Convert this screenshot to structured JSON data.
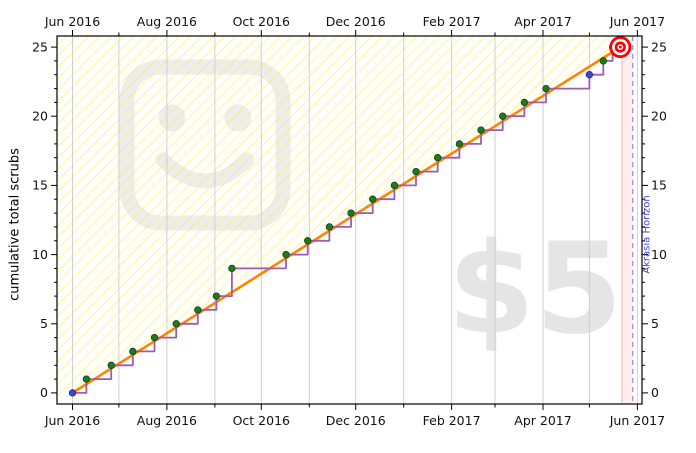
{
  "labels": {
    "y_axis_title": "cumulative total scrubs",
    "akrasia_horizon": "Akrasia Horizon",
    "pledge_watermark": "$5"
  },
  "colors": {
    "road": "#ff8400",
    "steps": "#a05ab0",
    "dot_green": "#1d7a1d",
    "dot_green_edge": "#0a3a0a",
    "dot_blue": "#4444cc",
    "dot_blue_edge": "#202090",
    "hatch": "#ffee00",
    "grid": "#cfcfcf",
    "target": "#ff0000",
    "akrasia_line": "#9a93e0",
    "pink_zone": "#ffdddd",
    "pink_zone_edge": "#ffb3b3",
    "tick": "#000000",
    "label_text": "#111111",
    "frame": "#000000",
    "watermark_gray": "#ededed"
  },
  "chart_data": {
    "type": "line",
    "subtype": "beeminder-goal-graph-step-data",
    "title": "",
    "xlabel": "",
    "ylabel": "cumulative total scrubs",
    "x_unit": "days since 2016-06-01",
    "x_axis": {
      "range_days": [
        -10,
        368
      ],
      "major_ticks": [
        {
          "day": 0,
          "label": "Jun 2016"
        },
        {
          "day": 61,
          "label": "Aug 2016"
        },
        {
          "day": 122,
          "label": "Oct 2016"
        },
        {
          "day": 183,
          "label": "Dec 2016"
        },
        {
          "day": 245,
          "label": "Feb 2017"
        },
        {
          "day": 304,
          "label": "Apr 2017"
        },
        {
          "day": 365,
          "label": "Jun 2017"
        }
      ],
      "minor_tick_days": [
        30,
        92,
        153,
        214,
        273,
        334
      ],
      "month_grid_days": [
        0,
        30,
        61,
        92,
        122,
        153,
        183,
        214,
        245,
        273,
        304,
        334,
        365
      ],
      "labels_on_top_and_bottom": true
    },
    "y_axis": {
      "range": [
        -0.8,
        25.8
      ],
      "major_ticks": [
        0,
        5,
        10,
        15,
        20,
        25
      ],
      "minor_step": 1,
      "labels_on_left_and_right": true
    },
    "grid": "vertical-months-only",
    "legend_position": "none",
    "datapoints": [
      {
        "day": 0,
        "value": 0,
        "kind": "blue"
      },
      {
        "day": 9,
        "value": 1,
        "kind": "green"
      },
      {
        "day": 25,
        "value": 2,
        "kind": "green"
      },
      {
        "day": 39,
        "value": 3,
        "kind": "green"
      },
      {
        "day": 53,
        "value": 4,
        "kind": "green"
      },
      {
        "day": 67,
        "value": 5,
        "kind": "green"
      },
      {
        "day": 81,
        "value": 6,
        "kind": "green"
      },
      {
        "day": 93,
        "value": 7,
        "kind": "green"
      },
      {
        "day": 103,
        "value": 9,
        "kind": "green"
      },
      {
        "day": 138,
        "value": 10,
        "kind": "green"
      },
      {
        "day": 152,
        "value": 11,
        "kind": "green"
      },
      {
        "day": 166,
        "value": 12,
        "kind": "green"
      },
      {
        "day": 180,
        "value": 13,
        "kind": "green"
      },
      {
        "day": 194,
        "value": 14,
        "kind": "green"
      },
      {
        "day": 208,
        "value": 15,
        "kind": "green"
      },
      {
        "day": 222,
        "value": 16,
        "kind": "green"
      },
      {
        "day": 236,
        "value": 17,
        "kind": "green"
      },
      {
        "day": 250,
        "value": 18,
        "kind": "green"
      },
      {
        "day": 264,
        "value": 19,
        "kind": "green"
      },
      {
        "day": 278,
        "value": 20,
        "kind": "green"
      },
      {
        "day": 292,
        "value": 21,
        "kind": "green"
      },
      {
        "day": 306,
        "value": 22,
        "kind": "green"
      },
      {
        "day": 334,
        "value": 23,
        "kind": "blue"
      },
      {
        "day": 343,
        "value": 24,
        "kind": "green"
      },
      {
        "day": 349,
        "value": 25,
        "kind": "green"
      }
    ],
    "road": {
      "start": {
        "day": 0,
        "value": 0
      },
      "end": {
        "day": 354,
        "value": 25
      }
    },
    "goal_target": {
      "day": 354,
      "value": 25
    },
    "akrasia_horizon_day": 362,
    "pink_zone_days": [
      355,
      362
    ],
    "good_side": "above-road-yellow-hatch",
    "watermarks": [
      "beeminder-logo",
      "$5"
    ]
  }
}
